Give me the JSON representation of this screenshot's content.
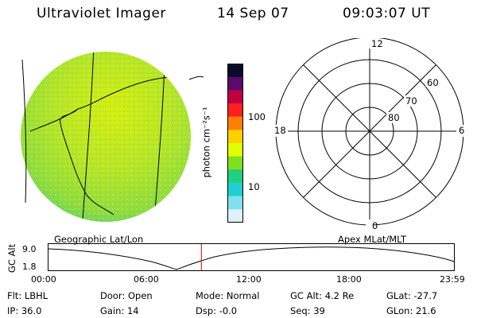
{
  "header": {
    "title": "Ultraviolet Imager",
    "date": "14 Sep 07",
    "time": "09:03:07 UT"
  },
  "colorbar": {
    "unit_label": "photon cm⁻²s⁻¹",
    "ticks": [
      "100",
      "10"
    ],
    "colors": [
      "#0a0a2a",
      "#5a0a6a",
      "#c00040",
      "#ff2020",
      "#ff8000",
      "#ffd000",
      "#e0ff00",
      "#80e020",
      "#20d080",
      "#20d0d0",
      "#80e0f0",
      "#e0f0f8"
    ]
  },
  "polar_plot": {
    "ring_labels": [
      "60",
      "70",
      "80"
    ],
    "hour_labels": {
      "top": "12",
      "left": "18",
      "right": "6",
      "bottom": "0"
    }
  },
  "panel_labels": {
    "left": "Geographic Lat/Lon",
    "right": "Apex MLat/MLT"
  },
  "altitude_plot": {
    "axis_label": "GC Alt",
    "y_ticks": [
      "9.0",
      "1.8"
    ],
    "x_ticks": [
      "00:00",
      "06:00",
      "12:00",
      "18:00",
      "23:59"
    ],
    "marker_color": "#e00000",
    "marker_time_hours": 9.05
  },
  "status": {
    "filter_label": "Flt:",
    "filter_value": "LBHL",
    "ip_label": "IP:",
    "ip_value": "36.0",
    "door_label": "Door:",
    "door_value": "Open",
    "gain_label": "Gain:",
    "gain_value": "14",
    "mode_label": "Mode:",
    "mode_value": "Normal",
    "dsp_label": "Dsp:",
    "dsp_value": "-0.0",
    "gcalt_label": "GC Alt:",
    "gcalt_value": "4.2 Re",
    "seq_label": "Seq:",
    "seq_value": "39",
    "glat_label": "GLat:",
    "glat_value": "-27.7",
    "glon_label": "GLon:",
    "glon_value": "21.6"
  }
}
